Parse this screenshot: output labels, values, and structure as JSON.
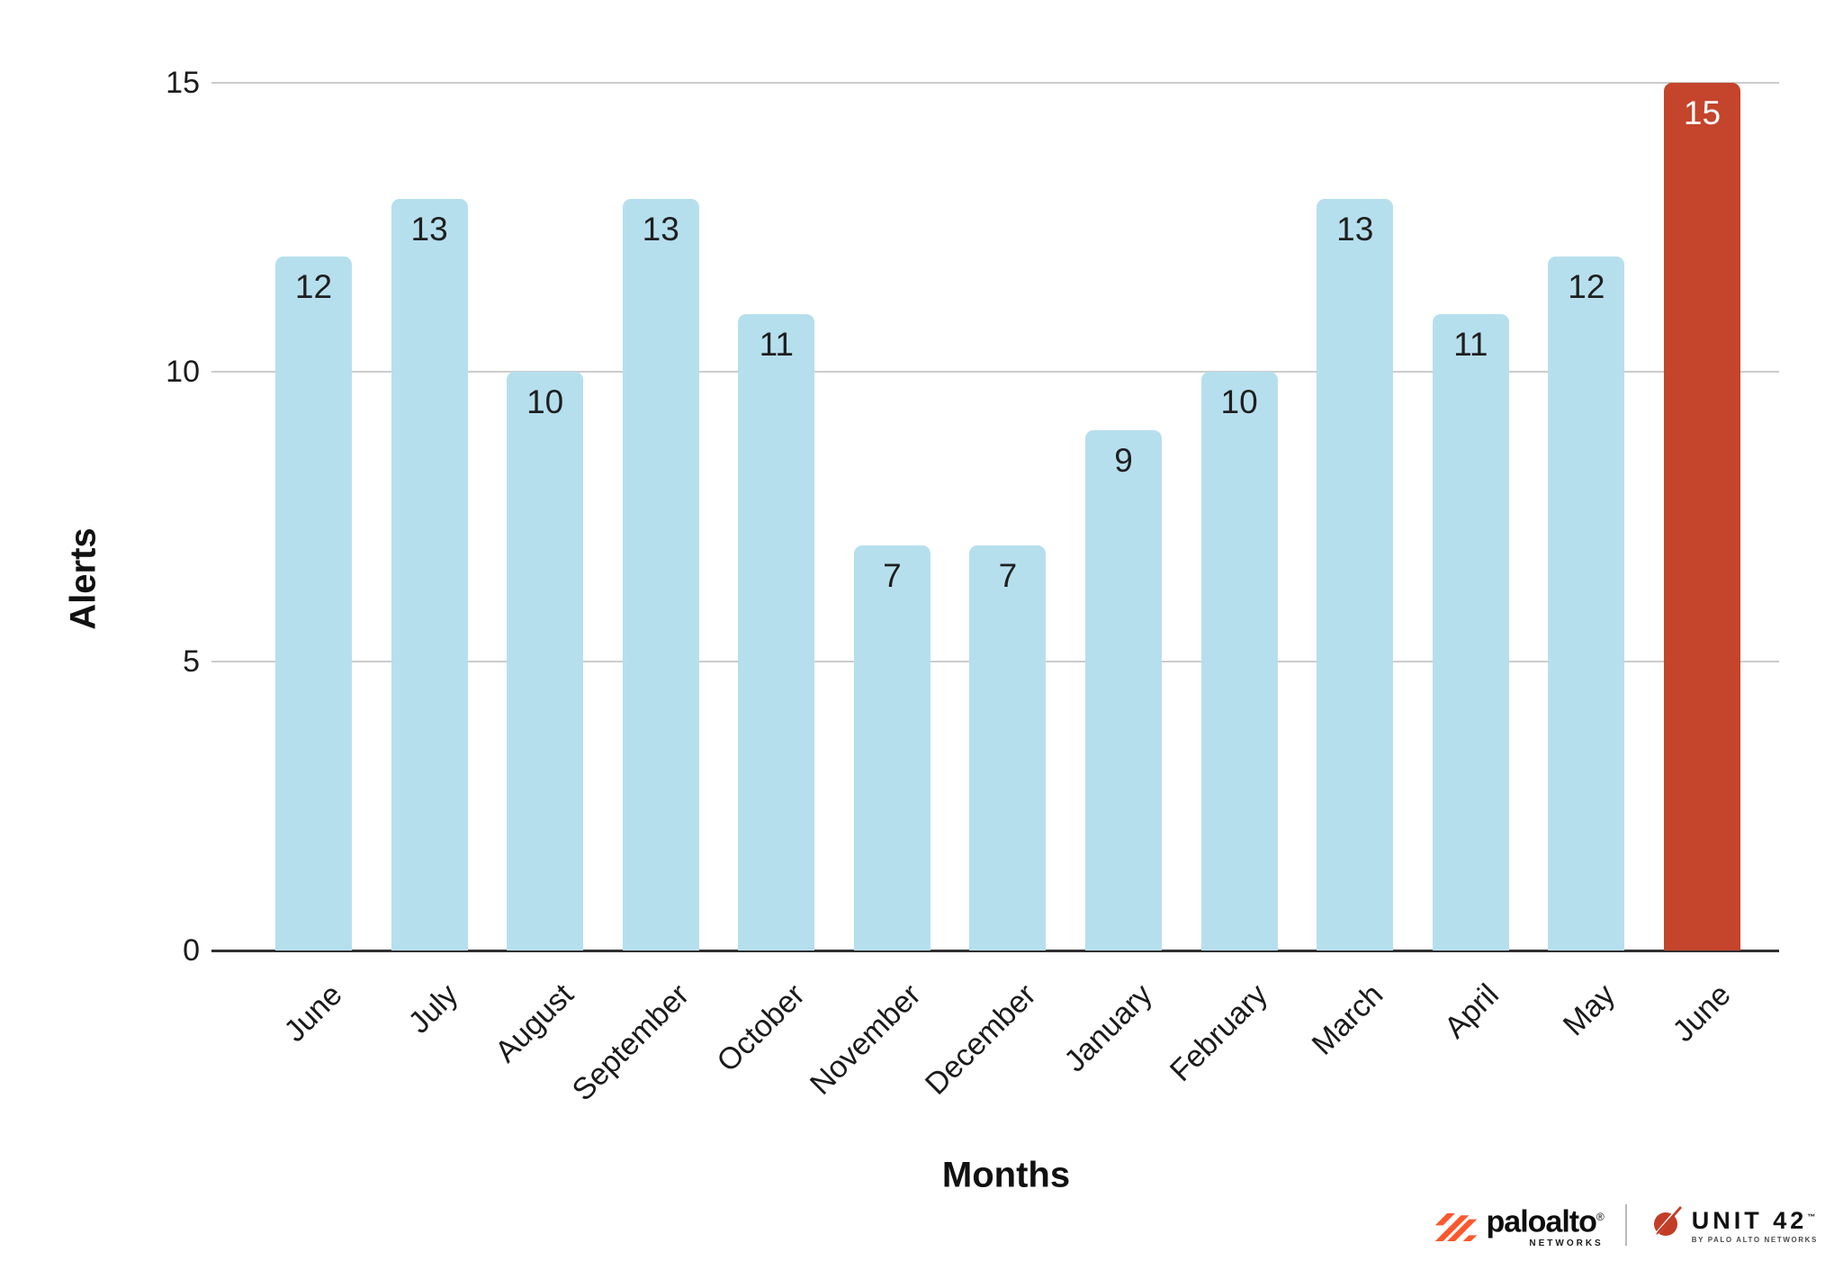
{
  "chart_data": {
    "type": "bar",
    "categories": [
      "June",
      "July",
      "August",
      "September",
      "October",
      "November",
      "December",
      "January",
      "February",
      "March",
      "April",
      "May",
      "June"
    ],
    "values": [
      12,
      13,
      10,
      13,
      11,
      7,
      7,
      9,
      10,
      13,
      11,
      12,
      15
    ],
    "highlight_index": 12,
    "xlabel": "Months",
    "ylabel": "Alerts",
    "ylim": [
      0,
      15
    ],
    "yticks": [
      0,
      5,
      10,
      15
    ],
    "grid": "horizontal-only",
    "legend": "none",
    "bar_color": "#b6dfee",
    "highlight_color": "#c4442c",
    "bar_label_color": "#1f1f1f",
    "highlight_label_color": "#ffffff",
    "gridline_color": "#cccccc",
    "axis_line_color": "#2f2f2f"
  },
  "footer": {
    "paloalto": {
      "brand": "paloalto",
      "registered_mark": "®",
      "sub": "NETWORKS",
      "icon_color": "#fa582d"
    },
    "unit42": {
      "brand": "UNIT 42",
      "trademark": "™",
      "sub": "BY PALO ALTO NETWORKS",
      "icon_color": "#c33d26"
    }
  }
}
